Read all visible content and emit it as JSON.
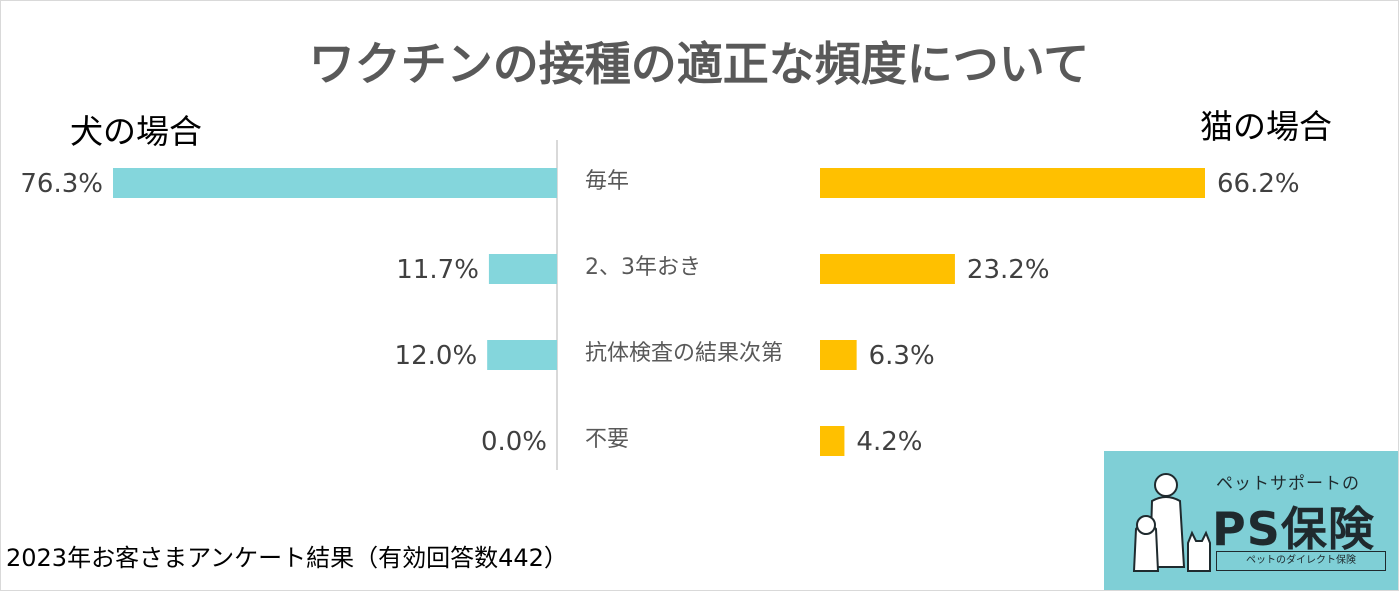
{
  "title": "ワクチンの接種の適正な頻度について",
  "footer": "2023年お客さまアンケート結果（有効回答数442）",
  "chart_data": {
    "type": "bar",
    "orientation": "horizontal",
    "title": "ワクチンの接種の適正な頻度について",
    "categories": [
      "毎年",
      "2、3年おき",
      "抗体検査の結果次第",
      "不要"
    ],
    "series": [
      {
        "name": "犬の場合",
        "values": [
          76.3,
          11.7,
          12.0,
          0.0
        ],
        "value_labels": [
          "76.3%",
          "11.7%",
          "12.0%",
          "0.0%"
        ],
        "color": "#84d6dc"
      },
      {
        "name": "猫の場合",
        "values": [
          66.2,
          23.2,
          6.3,
          4.2
        ],
        "value_labels": [
          "66.2%",
          "23.2%",
          "6.3%",
          "4.2%"
        ],
        "color": "#ffc000"
      }
    ],
    "unit": "%",
    "xlim": [
      0,
      100
    ],
    "grid": false,
    "legend": "none"
  },
  "logo": {
    "tagline": "ペットサポートの",
    "brand": "PS保険",
    "subline": "ペットのダイレクト保険",
    "color": "#7fcfd6"
  }
}
